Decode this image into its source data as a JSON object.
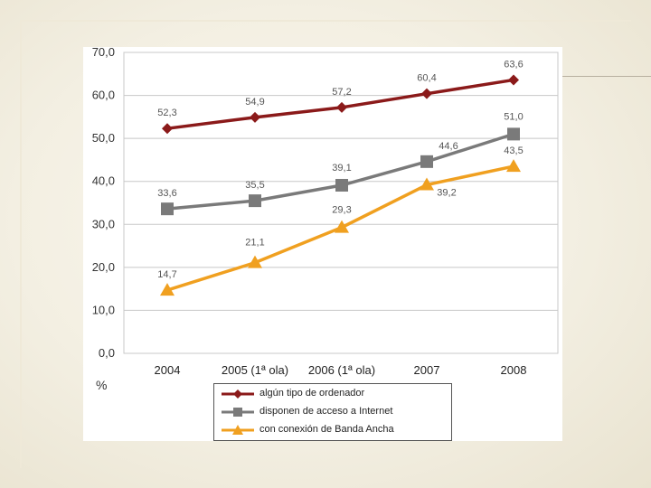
{
  "slide": {
    "percent_label": "%",
    "colors": {
      "background": "#f2eee0",
      "series1": "#8b1a1a",
      "series2": "#7a7a7a",
      "series3": "#f0a020"
    }
  },
  "chart_data": {
    "type": "line",
    "title": "",
    "xlabel": "",
    "ylabel": "%",
    "categories": [
      "2004",
      "2005 (1ª ola)",
      "2006 (1ª ola)",
      "2007",
      "2008"
    ],
    "y_ticks": [
      "0,0",
      "10,0",
      "20,0",
      "30,0",
      "40,0",
      "50,0",
      "60,0",
      "70,0"
    ],
    "ylim": [
      0,
      70
    ],
    "grid": true,
    "legend_position": "bottom",
    "series": [
      {
        "name": "algún tipo de ordenador",
        "marker": "diamond",
        "color": "#8b1a1a",
        "values": [
          52.3,
          54.9,
          57.2,
          60.4,
          63.6
        ],
        "labels": [
          "52,3",
          "54,9",
          "57,2",
          "60,4",
          "63,6"
        ]
      },
      {
        "name": "disponen de acceso a Internet",
        "marker": "square",
        "color": "#7a7a7a",
        "values": [
          33.6,
          35.5,
          39.1,
          44.6,
          51.0
        ],
        "labels": [
          "33,6",
          "35,5",
          "39,1",
          "44,6",
          "51,0"
        ]
      },
      {
        "name": "con conexión de Banda Ancha",
        "marker": "triangle",
        "color": "#f0a020",
        "values": [
          14.7,
          21.1,
          29.3,
          39.2,
          43.5
        ],
        "labels": [
          "14,7",
          "21,1",
          "29,3",
          "39,2",
          "43,5"
        ]
      }
    ]
  }
}
